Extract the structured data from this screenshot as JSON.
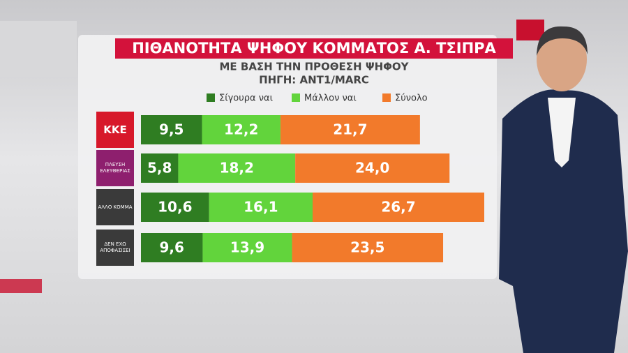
{
  "chart_data": {
    "type": "bar",
    "orientation": "horizontal",
    "stacked": true,
    "title": "ΠΙΘΑΝΟΤΗΤΑ ΨΗΦΟΥ ΚΟΜΜΑΤΟΣ Α. ΤΣΙΠΡΑ",
    "subtitle": [
      "ΜΕ ΒΑΣΗ ΤΗΝ ΠΡΟΘΕΣΗ ΨΗΦΟΥ",
      "ΠΗΓΗ: ANT1/MARC"
    ],
    "categories": [
      "ΚΚΕ",
      "ΠΛΕΥΣΗ ΕΛΕΥΘΕΡΙΑΣ",
      "ΑΛΛΟ ΚΟΜΜΑ",
      "ΔΕΝ ΕΧΩ ΑΠΟΦΑΣΙΣΕΙ"
    ],
    "category_colors": [
      "#d7182a",
      "#8e1f6e",
      "#3a3a3a",
      "#3a3a3a"
    ],
    "series": [
      {
        "name": "Σίγουρα ναι",
        "color": "#2f7d22",
        "values": [
          9.5,
          5.8,
          10.6,
          9.6
        ],
        "value_labels": [
          "9,5",
          "5,8",
          "10,6",
          "9,6"
        ]
      },
      {
        "name": "Μάλλον ναι",
        "color": "#62d43c",
        "values": [
          12.2,
          18.2,
          16.1,
          13.9
        ],
        "value_labels": [
          "12,2",
          "18,2",
          "16,1",
          "13,9"
        ]
      },
      {
        "name": "Σύνολο",
        "color": "#f27a2b",
        "values": [
          21.7,
          24.0,
          26.7,
          23.5
        ],
        "value_labels": [
          "21,7",
          "24,0",
          "26,7",
          "23,5"
        ]
      }
    ]
  }
}
